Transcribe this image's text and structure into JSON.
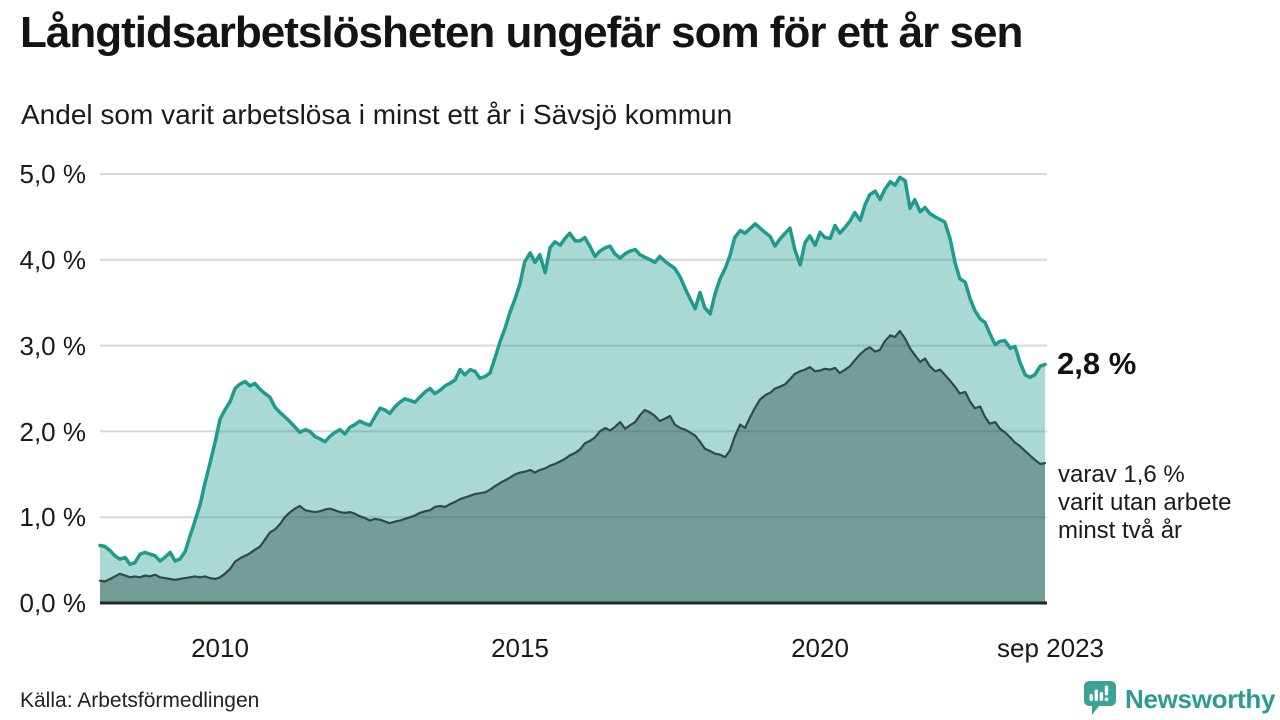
{
  "header": {
    "title": "Långtidsarbetslösheten ungefär som för ett år sen",
    "subtitle": "Andel som varit arbetslösa i minst ett år i Sävsjö kommun"
  },
  "footer": {
    "source": "Källa: Arbetsförmedlingen",
    "brand": "Newsworthy"
  },
  "colors": {
    "series1_stroke": "#1f9b8c",
    "series1_fill": "rgba(31,155,140,0.38)",
    "series2_stroke": "#2e4b46",
    "series2_fill": "rgba(43,74,69,0.42)",
    "gridline": "#d8d8d8",
    "axis_line": "#1c2a29",
    "brand_teal": "#3aa396"
  },
  "chart_data": {
    "type": "area",
    "title": "Långtidsarbetslösheten ungefär som för ett år sen",
    "subtitle": "Andel som varit arbetslösa i minst ett år i Sävsjö kommun",
    "unit": "%",
    "grid": true,
    "legend_position": "end-of-line-labels",
    "x_axis": {
      "min": 2008,
      "max": 2023.75,
      "ticks": [
        {
          "label": "2010",
          "value": 2010
        },
        {
          "label": "2015",
          "value": 2015
        },
        {
          "label": "2020",
          "value": 2020
        },
        {
          "label": "sep 2023",
          "value": 2023.67
        }
      ]
    },
    "y_axis": {
      "min": 0,
      "max": 5.0,
      "ticks": [
        {
          "label": "0,0 %",
          "value": 0
        },
        {
          "label": "1,0 %",
          "value": 1
        },
        {
          "label": "2,0 %",
          "value": 2
        },
        {
          "label": "3,0 %",
          "value": 3
        },
        {
          "label": "4,0 %",
          "value": 4
        },
        {
          "label": "5,0 %",
          "value": 5
        }
      ]
    },
    "x": [
      2008,
      2008.08,
      2008.17,
      2008.25,
      2008.33,
      2008.42,
      2008.5,
      2008.58,
      2008.67,
      2008.75,
      2008.83,
      2008.92,
      2009,
      2009.08,
      2009.17,
      2009.25,
      2009.33,
      2009.42,
      2009.5,
      2009.58,
      2009.67,
      2009.75,
      2009.83,
      2009.92,
      2010,
      2010.08,
      2010.17,
      2010.25,
      2010.33,
      2010.42,
      2010.5,
      2010.58,
      2010.67,
      2010.75,
      2010.83,
      2010.92,
      2011,
      2011.08,
      2011.17,
      2011.25,
      2011.33,
      2011.42,
      2011.5,
      2011.58,
      2011.67,
      2011.75,
      2011.83,
      2011.92,
      2012,
      2012.08,
      2012.17,
      2012.25,
      2012.33,
      2012.42,
      2012.5,
      2012.58,
      2012.67,
      2012.75,
      2012.83,
      2012.92,
      2013,
      2013.08,
      2013.17,
      2013.25,
      2013.33,
      2013.42,
      2013.5,
      2013.58,
      2013.67,
      2013.75,
      2013.83,
      2013.92,
      2014,
      2014.08,
      2014.17,
      2014.25,
      2014.33,
      2014.42,
      2014.5,
      2014.58,
      2014.67,
      2014.75,
      2014.83,
      2014.92,
      2015,
      2015.08,
      2015.17,
      2015.25,
      2015.33,
      2015.42,
      2015.5,
      2015.58,
      2015.67,
      2015.75,
      2015.83,
      2015.92,
      2016,
      2016.08,
      2016.17,
      2016.25,
      2016.33,
      2016.42,
      2016.5,
      2016.58,
      2016.67,
      2016.75,
      2016.83,
      2016.92,
      2017,
      2017.08,
      2017.17,
      2017.25,
      2017.33,
      2017.42,
      2017.5,
      2017.58,
      2017.67,
      2017.75,
      2017.83,
      2017.92,
      2018,
      2018.08,
      2018.17,
      2018.25,
      2018.33,
      2018.42,
      2018.5,
      2018.58,
      2018.67,
      2018.75,
      2018.83,
      2018.92,
      2019,
      2019.08,
      2019.17,
      2019.25,
      2019.33,
      2019.42,
      2019.5,
      2019.58,
      2019.67,
      2019.75,
      2019.83,
      2019.92,
      2020,
      2020.08,
      2020.17,
      2020.25,
      2020.33,
      2020.42,
      2020.5,
      2020.58,
      2020.67,
      2020.75,
      2020.83,
      2020.92,
      2021,
      2021.08,
      2021.17,
      2021.25,
      2021.33,
      2021.42,
      2021.5,
      2021.58,
      2021.67,
      2021.75,
      2021.83,
      2021.92,
      2022,
      2022.08,
      2022.17,
      2022.25,
      2022.33,
      2022.42,
      2022.5,
      2022.58,
      2022.67,
      2022.75,
      2022.83,
      2022.92,
      2023,
      2023.08,
      2023.17,
      2023.25,
      2023.33,
      2023.42,
      2023.5,
      2023.58,
      2023.67,
      2023.75
    ],
    "series": [
      {
        "name": "Arbetslösa minst ett år",
        "end_label": "2,8 %",
        "latest_value": 2.8,
        "values": [
          0.67,
          0.66,
          0.61,
          0.55,
          0.51,
          0.53,
          0.45,
          0.47,
          0.57,
          0.59,
          0.57,
          0.55,
          0.49,
          0.53,
          0.59,
          0.49,
          0.51,
          0.6,
          0.78,
          0.95,
          1.15,
          1.4,
          1.62,
          1.88,
          2.14,
          2.25,
          2.35,
          2.5,
          2.55,
          2.58,
          2.53,
          2.56,
          2.49,
          2.44,
          2.4,
          2.28,
          2.22,
          2.17,
          2.11,
          2.05,
          1.99,
          2.02,
          2.0,
          1.94,
          1.91,
          1.88,
          1.94,
          1.99,
          2.02,
          1.97,
          2.05,
          2.08,
          2.12,
          2.09,
          2.07,
          2.17,
          2.27,
          2.25,
          2.21,
          2.29,
          2.34,
          2.38,
          2.36,
          2.34,
          2.4,
          2.46,
          2.5,
          2.44,
          2.48,
          2.53,
          2.56,
          2.6,
          2.72,
          2.66,
          2.72,
          2.7,
          2.62,
          2.64,
          2.68,
          2.85,
          3.05,
          3.2,
          3.38,
          3.55,
          3.72,
          3.98,
          4.08,
          3.97,
          4.06,
          3.85,
          4.14,
          4.21,
          4.17,
          4.25,
          4.31,
          4.22,
          4.22,
          4.26,
          4.15,
          4.04,
          4.1,
          4.14,
          4.16,
          4.07,
          4.02,
          4.07,
          4.1,
          4.12,
          4.06,
          4.03,
          4.0,
          3.97,
          4.04,
          3.98,
          3.94,
          3.9,
          3.8,
          3.67,
          3.55,
          3.43,
          3.62,
          3.44,
          3.37,
          3.6,
          3.77,
          3.9,
          4.05,
          4.26,
          4.34,
          4.31,
          4.36,
          4.42,
          4.37,
          4.32,
          4.27,
          4.16,
          4.24,
          4.31,
          4.37,
          4.12,
          3.94,
          4.2,
          4.28,
          4.17,
          4.32,
          4.26,
          4.25,
          4.4,
          4.31,
          4.38,
          4.45,
          4.55,
          4.46,
          4.64,
          4.76,
          4.8,
          4.7,
          4.82,
          4.91,
          4.87,
          4.96,
          4.92,
          4.6,
          4.7,
          4.56,
          4.61,
          4.54,
          4.5,
          4.47,
          4.44,
          4.24,
          3.97,
          3.78,
          3.74,
          3.55,
          3.41,
          3.31,
          3.27,
          3.14,
          3.01,
          3.05,
          3.06,
          2.97,
          2.99,
          2.81,
          2.66,
          2.63,
          2.66,
          2.76,
          2.78
        ]
      },
      {
        "name": "Varav utan arbete minst två år",
        "latest_value": 1.6,
        "annotation_lines": [
          "varav 1,6 %",
          "varit utan arbete",
          "minst två år"
        ],
        "values": [
          0.26,
          0.25,
          0.28,
          0.31,
          0.34,
          0.32,
          0.3,
          0.31,
          0.3,
          0.32,
          0.31,
          0.33,
          0.3,
          0.29,
          0.28,
          0.27,
          0.28,
          0.29,
          0.3,
          0.31,
          0.3,
          0.31,
          0.29,
          0.28,
          0.3,
          0.34,
          0.4,
          0.48,
          0.52,
          0.55,
          0.58,
          0.62,
          0.66,
          0.74,
          0.82,
          0.86,
          0.92,
          1.0,
          1.06,
          1.1,
          1.13,
          1.08,
          1.07,
          1.06,
          1.07,
          1.09,
          1.1,
          1.08,
          1.06,
          1.05,
          1.06,
          1.04,
          1.01,
          0.99,
          0.96,
          0.98,
          0.97,
          0.95,
          0.93,
          0.95,
          0.96,
          0.98,
          1.0,
          1.02,
          1.05,
          1.07,
          1.08,
          1.12,
          1.13,
          1.12,
          1.15,
          1.18,
          1.21,
          1.23,
          1.25,
          1.27,
          1.28,
          1.29,
          1.32,
          1.36,
          1.4,
          1.43,
          1.46,
          1.5,
          1.52,
          1.53,
          1.55,
          1.52,
          1.55,
          1.57,
          1.6,
          1.62,
          1.65,
          1.68,
          1.72,
          1.75,
          1.79,
          1.86,
          1.89,
          1.93,
          2.0,
          2.04,
          2.01,
          2.05,
          2.11,
          2.03,
          2.07,
          2.11,
          2.19,
          2.25,
          2.22,
          2.18,
          2.12,
          2.15,
          2.18,
          2.08,
          2.04,
          2.02,
          1.99,
          1.95,
          1.88,
          1.8,
          1.77,
          1.74,
          1.73,
          1.7,
          1.78,
          1.94,
          2.08,
          2.04,
          2.16,
          2.28,
          2.37,
          2.42,
          2.45,
          2.5,
          2.52,
          2.55,
          2.61,
          2.67,
          2.7,
          2.72,
          2.75,
          2.7,
          2.71,
          2.73,
          2.72,
          2.74,
          2.68,
          2.72,
          2.76,
          2.83,
          2.9,
          2.95,
          2.98,
          2.93,
          2.95,
          3.05,
          3.12,
          3.1,
          3.17,
          3.08,
          2.97,
          2.89,
          2.81,
          2.85,
          2.76,
          2.7,
          2.72,
          2.66,
          2.59,
          2.52,
          2.44,
          2.46,
          2.35,
          2.27,
          2.29,
          2.17,
          2.09,
          2.11,
          2.03,
          1.99,
          1.93,
          1.87,
          1.83,
          1.77,
          1.72,
          1.67,
          1.62,
          1.63
        ]
      }
    ]
  }
}
